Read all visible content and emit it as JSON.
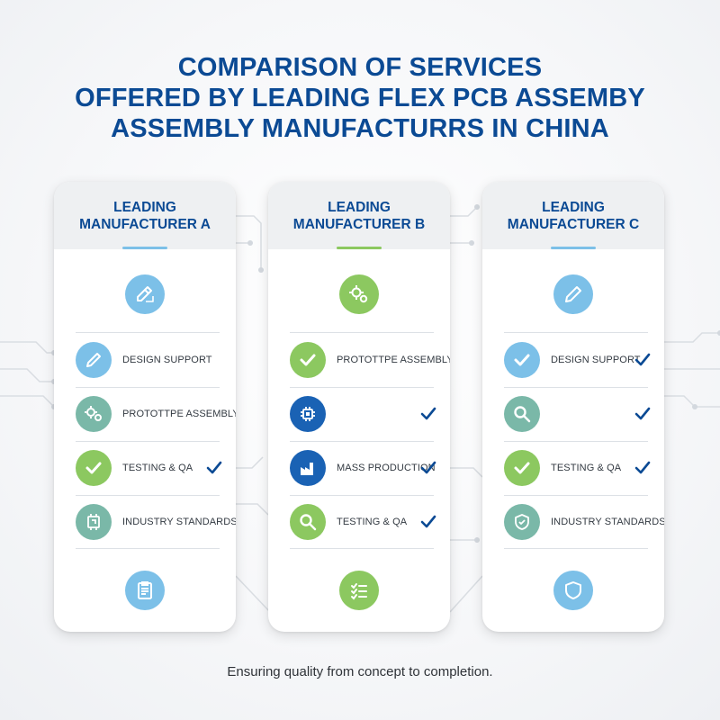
{
  "title": {
    "line1": "COMPARISON OF SERVICES",
    "line2": "OFFERED BY LEADING FLEX PCB ASSEMBY",
    "line3": "ASSEMBLY MANUFACTURRS IN CHINA"
  },
  "colors": {
    "title": "#0b4a94",
    "blue": "#7cc0e8",
    "green": "#8cc860",
    "teal": "#7ab8a8",
    "navy": "#1a62b4",
    "check": "#0b4a94"
  },
  "cards": [
    {
      "header_line1": "LEADING",
      "header_line2": "MANUFACTURER A",
      "accent_color": "#7cc0e8",
      "top_icon": "pencil-ruler-icon",
      "bottom_icon": "clipboard-icon",
      "rows": [
        {
          "icon": "pencil-icon",
          "label": "DESIGN SUPPORT",
          "checked": false
        },
        {
          "icon": "gears-icon",
          "label": "PROTOTTPE ASSEMBLY",
          "checked": false
        },
        {
          "icon": "checkmark-icon",
          "label": "TESTING & QA",
          "checked": true
        },
        {
          "icon": "circuit-board-icon",
          "label": "INDUSTRY STANDARDS",
          "checked": false
        }
      ]
    },
    {
      "header_line1": "LEADING",
      "header_line2": "MANUFACTURER B",
      "accent_color": "#8cc860",
      "top_icon": "gears-icon",
      "bottom_icon": "checklist-icon",
      "rows": [
        {
          "icon": "checkmark-icon",
          "label": "PROTOTTPE ASSEMBLY",
          "checked": false
        },
        {
          "icon": "chip-icon",
          "label": "",
          "checked": true
        },
        {
          "icon": "factory-icon",
          "label": "MASS PRODUCTION",
          "checked": true
        },
        {
          "icon": "magnifier-icon",
          "label": "TESTING & QA",
          "checked": true
        }
      ]
    },
    {
      "header_line1": "LEADING",
      "header_line2": "MANUFACTURER C",
      "accent_color": "#7cc0e8",
      "top_icon": "pencil-icon",
      "bottom_icon": "shield-icon",
      "rows": [
        {
          "icon": "checkmark-icon",
          "label": "DESIGN SUPPORT",
          "checked": true
        },
        {
          "icon": "magnifier-icon",
          "label": "",
          "checked": true
        },
        {
          "icon": "checkmark-icon",
          "label": "TESTING & QA",
          "checked": true
        },
        {
          "icon": "shield-icon",
          "label": "INDUSTRY STANDARDS",
          "checked": false
        }
      ]
    }
  ],
  "footer": "Ensuring quality from concept to completion."
}
